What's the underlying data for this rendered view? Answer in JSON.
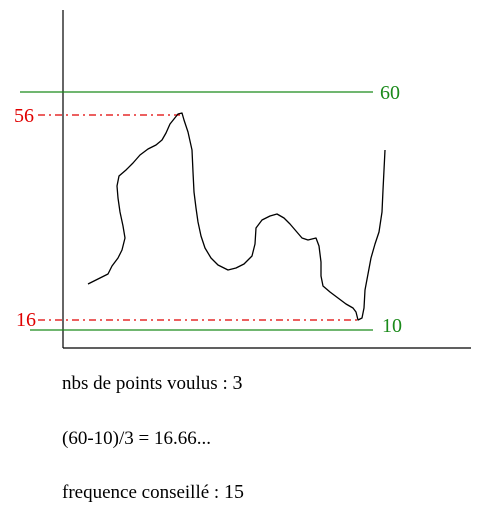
{
  "labels": {
    "upper_limit": "60",
    "lower_limit": "10",
    "curve_max": "56",
    "curve_min": "16"
  },
  "colors": {
    "limits": "#1a8a1a",
    "markers": "#e00000",
    "curve": "#000000",
    "axes": "#000000",
    "text": "#000000"
  },
  "notes": {
    "points_label": "nbs de points voulus :",
    "points_value": "3",
    "formula": "(60-10)/3 = 16.66...",
    "frequency_label": "frequence conseillé :",
    "frequency_value": "15"
  }
}
